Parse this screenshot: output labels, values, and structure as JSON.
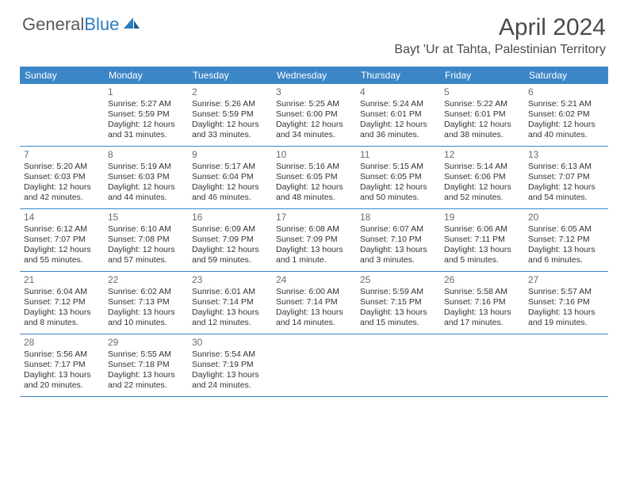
{
  "brand": {
    "part1": "General",
    "part2": "Blue"
  },
  "title": "April 2024",
  "location": "Bayt 'Ur at Tahta, Palestinian Territory",
  "colors": {
    "header_bg": "#3b86c6",
    "header_text": "#ffffff",
    "border": "#3b86c6",
    "daynum": "#6b6b6b",
    "body_text": "#333333",
    "title_text": "#4a4a4a",
    "logo_gray": "#5a5a5a",
    "logo_blue": "#2b7bbf",
    "background": "#ffffff"
  },
  "daynames": [
    "Sunday",
    "Monday",
    "Tuesday",
    "Wednesday",
    "Thursday",
    "Friday",
    "Saturday"
  ],
  "weeks": [
    [
      {
        "n": "",
        "rise": "",
        "set": "",
        "day": ""
      },
      {
        "n": "1",
        "rise": "Sunrise: 5:27 AM",
        "set": "Sunset: 5:59 PM",
        "day": "Daylight: 12 hours and 31 minutes."
      },
      {
        "n": "2",
        "rise": "Sunrise: 5:26 AM",
        "set": "Sunset: 5:59 PM",
        "day": "Daylight: 12 hours and 33 minutes."
      },
      {
        "n": "3",
        "rise": "Sunrise: 5:25 AM",
        "set": "Sunset: 6:00 PM",
        "day": "Daylight: 12 hours and 34 minutes."
      },
      {
        "n": "4",
        "rise": "Sunrise: 5:24 AM",
        "set": "Sunset: 6:01 PM",
        "day": "Daylight: 12 hours and 36 minutes."
      },
      {
        "n": "5",
        "rise": "Sunrise: 5:22 AM",
        "set": "Sunset: 6:01 PM",
        "day": "Daylight: 12 hours and 38 minutes."
      },
      {
        "n": "6",
        "rise": "Sunrise: 5:21 AM",
        "set": "Sunset: 6:02 PM",
        "day": "Daylight: 12 hours and 40 minutes."
      }
    ],
    [
      {
        "n": "7",
        "rise": "Sunrise: 5:20 AM",
        "set": "Sunset: 6:03 PM",
        "day": "Daylight: 12 hours and 42 minutes."
      },
      {
        "n": "8",
        "rise": "Sunrise: 5:19 AM",
        "set": "Sunset: 6:03 PM",
        "day": "Daylight: 12 hours and 44 minutes."
      },
      {
        "n": "9",
        "rise": "Sunrise: 5:17 AM",
        "set": "Sunset: 6:04 PM",
        "day": "Daylight: 12 hours and 46 minutes."
      },
      {
        "n": "10",
        "rise": "Sunrise: 5:16 AM",
        "set": "Sunset: 6:05 PM",
        "day": "Daylight: 12 hours and 48 minutes."
      },
      {
        "n": "11",
        "rise": "Sunrise: 5:15 AM",
        "set": "Sunset: 6:05 PM",
        "day": "Daylight: 12 hours and 50 minutes."
      },
      {
        "n": "12",
        "rise": "Sunrise: 5:14 AM",
        "set": "Sunset: 6:06 PM",
        "day": "Daylight: 12 hours and 52 minutes."
      },
      {
        "n": "13",
        "rise": "Sunrise: 6:13 AM",
        "set": "Sunset: 7:07 PM",
        "day": "Daylight: 12 hours and 54 minutes."
      }
    ],
    [
      {
        "n": "14",
        "rise": "Sunrise: 6:12 AM",
        "set": "Sunset: 7:07 PM",
        "day": "Daylight: 12 hours and 55 minutes."
      },
      {
        "n": "15",
        "rise": "Sunrise: 6:10 AM",
        "set": "Sunset: 7:08 PM",
        "day": "Daylight: 12 hours and 57 minutes."
      },
      {
        "n": "16",
        "rise": "Sunrise: 6:09 AM",
        "set": "Sunset: 7:09 PM",
        "day": "Daylight: 12 hours and 59 minutes."
      },
      {
        "n": "17",
        "rise": "Sunrise: 6:08 AM",
        "set": "Sunset: 7:09 PM",
        "day": "Daylight: 13 hours and 1 minute."
      },
      {
        "n": "18",
        "rise": "Sunrise: 6:07 AM",
        "set": "Sunset: 7:10 PM",
        "day": "Daylight: 13 hours and 3 minutes."
      },
      {
        "n": "19",
        "rise": "Sunrise: 6:06 AM",
        "set": "Sunset: 7:11 PM",
        "day": "Daylight: 13 hours and 5 minutes."
      },
      {
        "n": "20",
        "rise": "Sunrise: 6:05 AM",
        "set": "Sunset: 7:12 PM",
        "day": "Daylight: 13 hours and 6 minutes."
      }
    ],
    [
      {
        "n": "21",
        "rise": "Sunrise: 6:04 AM",
        "set": "Sunset: 7:12 PM",
        "day": "Daylight: 13 hours and 8 minutes."
      },
      {
        "n": "22",
        "rise": "Sunrise: 6:02 AM",
        "set": "Sunset: 7:13 PM",
        "day": "Daylight: 13 hours and 10 minutes."
      },
      {
        "n": "23",
        "rise": "Sunrise: 6:01 AM",
        "set": "Sunset: 7:14 PM",
        "day": "Daylight: 13 hours and 12 minutes."
      },
      {
        "n": "24",
        "rise": "Sunrise: 6:00 AM",
        "set": "Sunset: 7:14 PM",
        "day": "Daylight: 13 hours and 14 minutes."
      },
      {
        "n": "25",
        "rise": "Sunrise: 5:59 AM",
        "set": "Sunset: 7:15 PM",
        "day": "Daylight: 13 hours and 15 minutes."
      },
      {
        "n": "26",
        "rise": "Sunrise: 5:58 AM",
        "set": "Sunset: 7:16 PM",
        "day": "Daylight: 13 hours and 17 minutes."
      },
      {
        "n": "27",
        "rise": "Sunrise: 5:57 AM",
        "set": "Sunset: 7:16 PM",
        "day": "Daylight: 13 hours and 19 minutes."
      }
    ],
    [
      {
        "n": "28",
        "rise": "Sunrise: 5:56 AM",
        "set": "Sunset: 7:17 PM",
        "day": "Daylight: 13 hours and 20 minutes."
      },
      {
        "n": "29",
        "rise": "Sunrise: 5:55 AM",
        "set": "Sunset: 7:18 PM",
        "day": "Daylight: 13 hours and 22 minutes."
      },
      {
        "n": "30",
        "rise": "Sunrise: 5:54 AM",
        "set": "Sunset: 7:19 PM",
        "day": "Daylight: 13 hours and 24 minutes."
      },
      {
        "n": "",
        "rise": "",
        "set": "",
        "day": ""
      },
      {
        "n": "",
        "rise": "",
        "set": "",
        "day": ""
      },
      {
        "n": "",
        "rise": "",
        "set": "",
        "day": ""
      },
      {
        "n": "",
        "rise": "",
        "set": "",
        "day": ""
      }
    ]
  ]
}
